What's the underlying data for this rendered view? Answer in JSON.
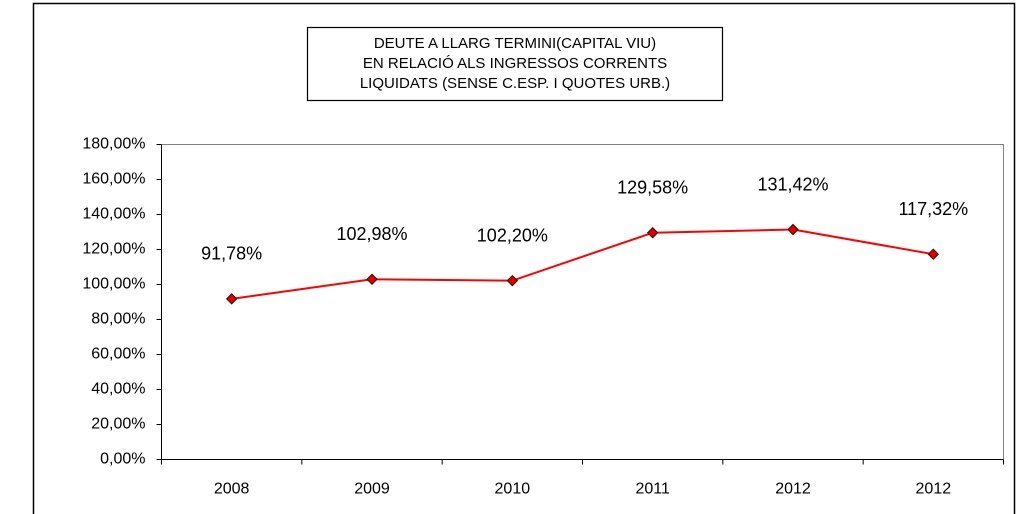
{
  "chart_data": {
    "type": "line",
    "title": [
      "DEUTE A LLARG TERMINI(CAPITAL VIU)",
      "EN RELACIÓ ALS INGRESSOS CORRENTS",
      "LIQUIDATS (SENSE C.ESP. I QUOTES URB.)"
    ],
    "categories": [
      "2008",
      "2009",
      "2010",
      "2011",
      "2012",
      "2012"
    ],
    "series": [
      {
        "name": null,
        "color": "#ff0000",
        "marker_color": "#e00000",
        "values": [
          91.78,
          102.98,
          102.2,
          129.58,
          131.42,
          117.32
        ],
        "value_labels": [
          "91,78%",
          "102,98%",
          "102,20%",
          "129,58%",
          "131,42%",
          "117,32%"
        ]
      }
    ],
    "ylim": [
      0,
      180
    ],
    "yticks": [
      {
        "value": 0,
        "label": "0,00%"
      },
      {
        "value": 20,
        "label": "20,00%"
      },
      {
        "value": 40,
        "label": "40,00%"
      },
      {
        "value": 60,
        "label": "60,00%"
      },
      {
        "value": 80,
        "label": "80,00%"
      },
      {
        "value": 100,
        "label": "100,00%"
      },
      {
        "value": 120,
        "label": "120,00%"
      },
      {
        "value": 140,
        "label": "140,00%"
      },
      {
        "value": 160,
        "label": "160,00%"
      },
      {
        "value": 180,
        "label": "180,00%"
      }
    ],
    "grid": false
  }
}
